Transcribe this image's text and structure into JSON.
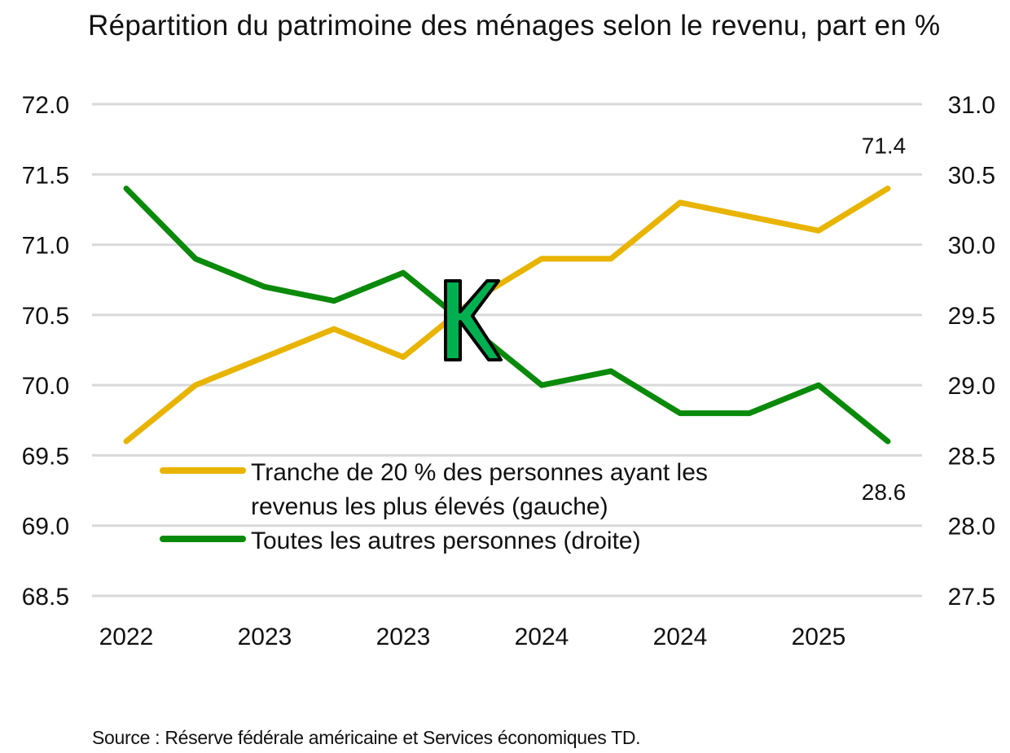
{
  "chart_data": {
    "type": "line",
    "title": "Répartition du patrimoine des ménages selon le revenu, part en %",
    "x_tick_labels": [
      "2022",
      "2023",
      "2023",
      "2024",
      "2024",
      "2025"
    ],
    "x_tick_every": 2,
    "y_left": {
      "ylim": [
        68.5,
        72.0
      ],
      "ticks": [
        "68.5",
        "69.0",
        "69.5",
        "70.0",
        "70.5",
        "71.0",
        "71.5",
        "72.0"
      ]
    },
    "y_right": {
      "ylim": [
        27.5,
        31.0
      ],
      "ticks": [
        "27.5",
        "28.0",
        "28.5",
        "29.0",
        "29.5",
        "30.0",
        "30.5",
        "31.0"
      ]
    },
    "grid": true,
    "series": [
      {
        "name": "Tranche de 20 % des personnes ayant les revenus les plus élevés (gauche)",
        "legend_lines": [
          "Tranche de 20 % des personnes ayant les",
          "revenus les plus élevés (gauche)"
        ],
        "axis": "left",
        "color": "#E8B400",
        "values": [
          69.6,
          70.0,
          70.2,
          70.4,
          70.2,
          70.6,
          70.9,
          70.9,
          71.3,
          71.2,
          71.1,
          71.4
        ],
        "end_label": "71.4"
      },
      {
        "name": "Toutes les autres personnes (droite)",
        "legend_lines": [
          "Toutes les autres personnes (droite)"
        ],
        "axis": "right",
        "color": "#0A8A0A",
        "values": [
          30.4,
          29.9,
          29.7,
          29.6,
          29.8,
          29.4,
          29.0,
          29.1,
          28.8,
          28.8,
          29.0,
          28.6
        ],
        "end_label": "28.6"
      }
    ],
    "legend_placement": "lower-left",
    "annotation": {
      "text": "K",
      "color": "#00B050"
    }
  },
  "source": "Source : Réserve fédérale américaine et Services économiques TD."
}
